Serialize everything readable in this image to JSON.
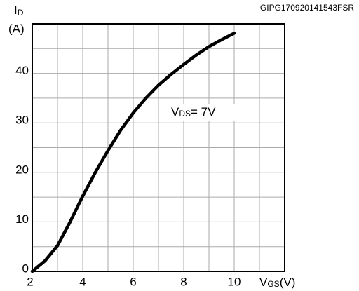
{
  "chart_data": {
    "type": "line",
    "source_id": "GIPG170920141543FSR",
    "y_label": {
      "symbol": "I",
      "sub": "D",
      "unit": "(A)"
    },
    "x_label": {
      "symbol": "V",
      "sub": "GS",
      "unit": "(V)"
    },
    "annotation": {
      "symbol": "V",
      "sub": "DS",
      "text": "= 7V"
    },
    "x": [
      2,
      2.5,
      3,
      3.5,
      4,
      4.5,
      5,
      5.5,
      6,
      6.5,
      7,
      7.5,
      8,
      8.5,
      9,
      9.5,
      10
    ],
    "series": [
      {
        "color": "#000000",
        "values": [
          0,
          2.1,
          5.2,
          10,
          15.2,
          20,
          24.4,
          28.5,
          32,
          35,
          37.6,
          39.8,
          41.8,
          43.7,
          45.4,
          46.8,
          48.1
        ]
      }
    ],
    "xlim": [
      2,
      12
    ],
    "xticks": [
      2,
      4,
      6,
      8,
      10
    ],
    "xminor_ticks": [
      3,
      5,
      7,
      9,
      11
    ],
    "ylim": [
      0,
      50
    ],
    "yticks": [
      0,
      10,
      20,
      30,
      40
    ],
    "yminor_ticks": [
      5,
      15,
      25,
      35,
      45
    ],
    "grid": true
  }
}
